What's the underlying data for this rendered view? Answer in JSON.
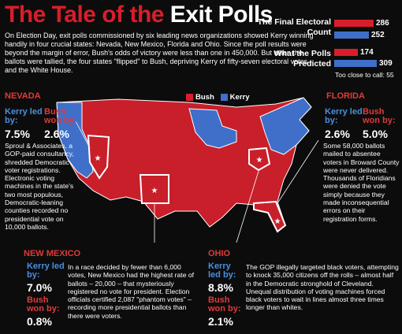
{
  "title": {
    "part1": "The Tale of the ",
    "part2": "Exit Polls"
  },
  "intro": "On Election Day, exit polls commissioned by six leading news organizations showed Kerry winning handily in four crucial states: Nevada, New Mexico, Florida and Ohio. Since the poll results were beyond the margin of error, Bush's odds of victory were less than one in 450,000. But when the ballots were tallied, the four states \"flipped\" to Bush, depriving Kerry of fifty-seven electoral votes – and the White House.",
  "electoral": {
    "final_label": "The Final Electoral Count",
    "final_bush": "286",
    "final_kerry": "252",
    "predicted_label": "What the Polls Predicted",
    "predicted_bush": "174",
    "predicted_kerry": "309",
    "close_label": "Too close to call: 55",
    "colors": {
      "bush": "#d81e2a",
      "kerry": "#3f6fc9"
    }
  },
  "legend": {
    "bush": "Bush",
    "kerry": "Kerry"
  },
  "nevada": {
    "name": "NEVADA",
    "kerry_led_label": "Kerry led by:",
    "kerry_led": "7.5%",
    "bush_won_label": "Bush won by:",
    "bush_won": "2.6%",
    "text": "Sproul & Associates, a GOP-paid consultancy, shredded Democratic voter registrations. Electronic voting machines in the state's two most populous, Democratic-leaning counties recorded no presidential vote on 10,000 ballots."
  },
  "florida": {
    "name": "FLORIDA",
    "kerry_led_label": "Kerry led by:",
    "kerry_led": "2.6%",
    "bush_won_label": "Bush won by:",
    "bush_won": "5.0%",
    "text": "Some 58,000 ballots mailed to absentee voters in Broward County were never delivered. Thousands of Floridians were denied the vote simply because they made inconsequential errors on their registration forms."
  },
  "new_mexico": {
    "name": "NEW MEXICO",
    "kerry_led_label": "Kerry led by:",
    "kerry_led": "7.0%",
    "bush_won_label": "Bush won by:",
    "bush_won": "0.8%",
    "text": "In a race decided by fewer than 6,000 votes, New Mexico had the highest rate of ballots – 20,000 – that mysteriously registered no vote for president. Election officials certified 2,087 \"phantom votes\" – recording more presidential ballots than there were voters."
  },
  "ohio": {
    "name": "OHIO",
    "kerry_led_label": "Kerry led by:",
    "kerry_led": "8.8%",
    "bush_won_label": "Bush won by:",
    "bush_won": "2.1%",
    "text": "The GOP illegally targeted black voters, attempting to knock 35,000 citizens off the rolls – almost half in the Democratic stronghold of Cleveland. Unequal distribution of voting machines forced black voters to wait in lines almost three times longer than whites."
  }
}
